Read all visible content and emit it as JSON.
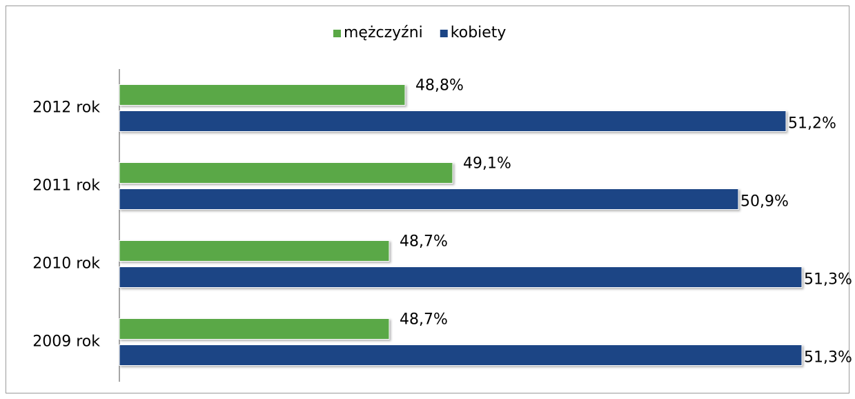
{
  "chart_data": {
    "type": "bar",
    "orientation": "horizontal",
    "categories": [
      "2012 rok",
      "2011 rok",
      "2010 rok",
      "2009 rok"
    ],
    "series": [
      {
        "name": "mężczyźni",
        "color": "#5aa846",
        "values": [
          48.8,
          49.1,
          48.7,
          48.7
        ],
        "value_labels": [
          "48,8%",
          "49,1%",
          "48,7%",
          "48,7%"
        ]
      },
      {
        "name": "kobiety",
        "color": "#1c4585",
        "values": [
          51.2,
          50.9,
          51.3,
          51.3
        ],
        "value_labels": [
          "51,2%",
          "50,9%",
          "51,3%",
          "51,3%"
        ]
      }
    ],
    "xlim": [
      47,
      51.5
    ],
    "legend": "top"
  }
}
